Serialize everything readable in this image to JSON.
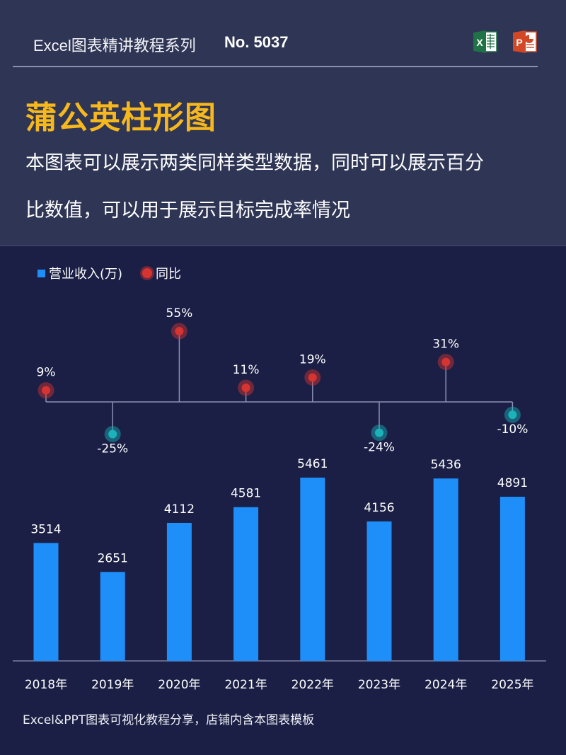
{
  "header": {
    "series_title": "Excel图表精讲教程系列",
    "series_no": "No. 5037",
    "icons": [
      "excel-icon",
      "powerpoint-icon"
    ],
    "title": "蒲公英柱形图",
    "description_line1": "本图表可以展示两类同样类型数据，同时可以展示百分",
    "description_line2": "比数值，可以用于展示目标完成率情况"
  },
  "legend": {
    "bar_label": "营业收入(万)",
    "dot_label": "同比"
  },
  "colors": {
    "header_bg": "#2f3554",
    "body_bg": "#1b1f45",
    "title": "#f6b81c",
    "bar": "#1e8ff8",
    "positive_dot": "#d63431",
    "negative_dot": "#1bb3b8",
    "axis": "#8b90b3"
  },
  "chart_data": {
    "type": "bar",
    "title": "蒲公英柱形图",
    "categories": [
      "2018年",
      "2019年",
      "2020年",
      "2021年",
      "2022年",
      "2023年",
      "2024年",
      "2025年"
    ],
    "series": [
      {
        "name": "营业收入(万)",
        "type": "bar",
        "values": [
          3514,
          2651,
          4112,
          4581,
          5461,
          4156,
          5436,
          4891
        ]
      },
      {
        "name": "同比",
        "type": "lollipop",
        "values": [
          9,
          -25,
          55,
          11,
          19,
          -24,
          31,
          -10
        ],
        "labels": [
          "9%",
          "-25%",
          "55%",
          "11%",
          "19%",
          "-24%",
          "31%",
          "-10%"
        ]
      }
    ],
    "xlabel": "",
    "ylabel": "",
    "grid": false,
    "legend_position": "top-left",
    "data_labels": true
  },
  "footer": {
    "text": "Excel&PPT图表可视化教程分享，店铺内含本图表模板"
  }
}
